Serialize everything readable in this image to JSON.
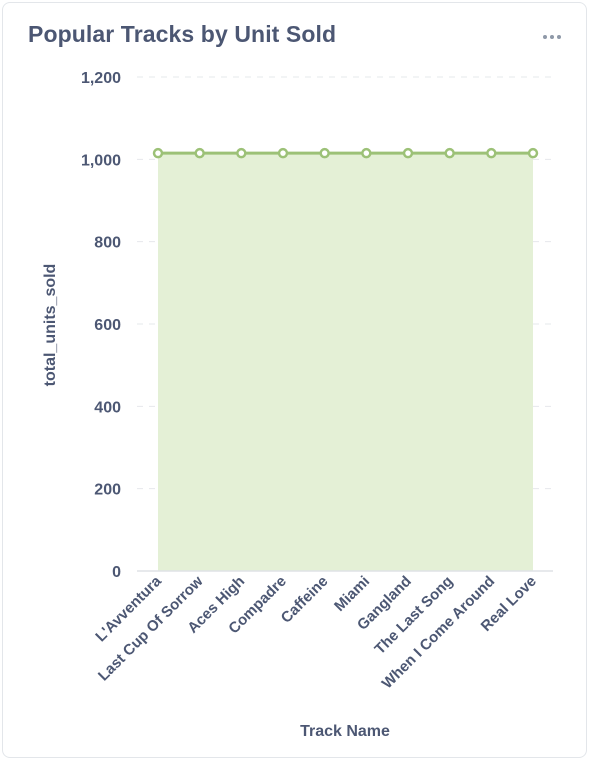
{
  "card": {
    "title": "Popular Tracks by Unit Sold",
    "more_icon": "more-horizontal-icon"
  },
  "colors": {
    "series_line": "#9cc177",
    "series_fill": "#e4f0d6",
    "grid": "#e6e8eb",
    "axis": "#dfe2e6",
    "text": "#4c5773"
  },
  "chart_data": {
    "type": "area",
    "title": "Popular Tracks by Unit Sold",
    "xlabel": "Track Name",
    "ylabel": "total_units_sold",
    "categories": [
      "L'Avventura",
      "Last Cup Of Sorrow",
      "Aces High",
      "Compadre",
      "Caffeine",
      "Miami",
      "Gangland",
      "The Last Song",
      "When I Come Around",
      "Real Love"
    ],
    "series": [
      {
        "values": [
          1015,
          1015,
          1015,
          1015,
          1015,
          1015,
          1015,
          1015,
          1015,
          1015
        ]
      }
    ],
    "ylim": [
      0,
      1200
    ],
    "yticks": [
      0,
      200,
      400,
      600,
      800,
      1000,
      1200
    ],
    "ytick_labels": [
      "0",
      "200",
      "400",
      "600",
      "800",
      "1,000",
      "1,200"
    ],
    "grid": true,
    "legend": "none"
  }
}
